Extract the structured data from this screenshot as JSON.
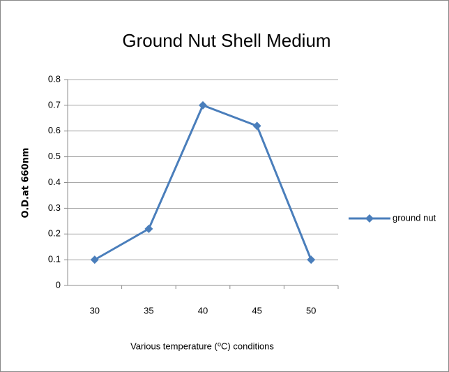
{
  "chart_data": {
    "type": "line",
    "title": "Ground Nut Shell Medium",
    "x_label": "Various temperature (⁰C) conditions",
    "y_label": "O.D.at 660nm",
    "categories": [
      "30",
      "35",
      "40",
      "45",
      "50"
    ],
    "series": [
      {
        "name": "ground nut",
        "color": "#4a7ebb",
        "values": [
          0.1,
          0.22,
          0.7,
          0.62,
          0.1
        ]
      }
    ],
    "ylim": [
      0,
      0.8
    ],
    "yticks": [
      0,
      0.1,
      0.2,
      0.3,
      0.4,
      0.5,
      0.6,
      0.7,
      0.8
    ],
    "grid": true,
    "legend": "right"
  }
}
